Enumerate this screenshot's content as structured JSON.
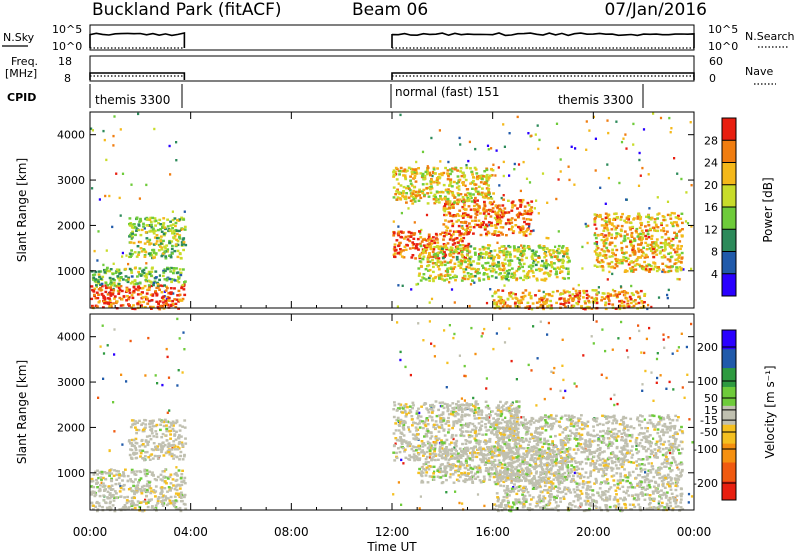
{
  "header": {
    "title": "Buckland Park (fitACF)",
    "beam": "Beam 06",
    "date": "07/Jan/2016"
  },
  "panels": {
    "nsky": {
      "label": "N.Sky",
      "ticks": [
        "10^5",
        "10^0"
      ],
      "right_label": "N.Search",
      "right_ticks": [
        "10^5",
        "10^0"
      ]
    },
    "freq": {
      "label_line1": "Freq.",
      "label_line2": "[MHz]",
      "ticks": [
        "18",
        "8"
      ],
      "right_label": "Nave",
      "right_ticks": [
        "60",
        "0"
      ]
    },
    "cpid": {
      "label": "CPID",
      "segments": [
        "themis 3300",
        "normal (fast) 151",
        "themis 3300"
      ]
    }
  },
  "power_panel": {
    "ylabel": "Slant Range [km]",
    "cbar_label": "Power [dB]",
    "cbar_ticks": [
      "28",
      "24",
      "20",
      "16",
      "12",
      "8",
      "4"
    ]
  },
  "velocity_panel": {
    "ylabel": "Slant Range [km]",
    "cbar_label": "Velocity [m s⁻¹]",
    "cbar_ticks": [
      "200",
      "100",
      "50",
      "15",
      "-15",
      "-50",
      "-100",
      "-200"
    ]
  },
  "x_axis": {
    "label": "Time UT",
    "ticks": [
      "00:00",
      "04:00",
      "08:00",
      "12:00",
      "16:00",
      "20:00",
      "00:00"
    ]
  },
  "chart_data": [
    {
      "type": "heatmap",
      "name": "power",
      "x_range_hours": [
        0,
        24
      ],
      "y_range_km": [
        180,
        4500
      ],
      "ylabel": "Slant Range [km]",
      "colorbar": {
        "label": "Power [dB]",
        "range": [
          0,
          32
        ],
        "ticks": [
          4,
          8,
          12,
          16,
          20,
          24,
          28
        ],
        "colors": [
          "#2a00ff",
          "#205aaa",
          "#2c8a5a",
          "#6ecb3a",
          "#c8dc2a",
          "#f4b81a",
          "#f07d10",
          "#e81f10"
        ]
      },
      "data_gaps_hours": [
        [
          3.75,
          12.0
        ]
      ],
      "regions": [
        {
          "t": [
            0.0,
            3.75
          ],
          "r": [
            180,
            700
          ],
          "power": 28
        },
        {
          "t": [
            0.0,
            3.75
          ],
          "r": [
            700,
            1100
          ],
          "power": 14
        },
        {
          "t": [
            1.5,
            3.75
          ],
          "r": [
            1300,
            2200
          ],
          "power": 16
        },
        {
          "t": [
            12.0,
            15.0
          ],
          "r": [
            1300,
            1900
          ],
          "power": 28
        },
        {
          "t": [
            14.0,
            17.5
          ],
          "r": [
            1800,
            2600
          ],
          "power": 26
        },
        {
          "t": [
            13.0,
            19.0
          ],
          "r": [
            800,
            1600
          ],
          "power": 18
        },
        {
          "t": [
            16.0,
            22.0
          ],
          "r": [
            180,
            600
          ],
          "power": 24
        },
        {
          "t": [
            20.0,
            23.5
          ],
          "r": [
            1000,
            2300
          ],
          "power": 22
        },
        {
          "t": [
            12.0,
            16.0
          ],
          "r": [
            2500,
            3300
          ],
          "power": 20
        }
      ]
    },
    {
      "type": "heatmap",
      "name": "velocity",
      "x_range_hours": [
        0,
        24
      ],
      "y_range_km": [
        180,
        4500
      ],
      "ylabel": "Slant Range [km]",
      "colorbar": {
        "label": "Velocity [m s⁻¹]",
        "range": [
          -250,
          250
        ],
        "ticks": [
          200,
          100,
          50,
          15,
          -15,
          -50,
          -100,
          -200
        ],
        "colors": [
          "#e81f10",
          "#f05a10",
          "#f59010",
          "#f5c020",
          "#c0c0b0",
          "#6ecb3a",
          "#2e9a40",
          "#205aaa",
          "#2a00ff"
        ]
      },
      "data_gaps_hours": [
        [
          3.75,
          12.0
        ]
      ],
      "regions": [
        {
          "t": [
            0.0,
            3.75
          ],
          "r": [
            180,
            1100
          ],
          "velocity": 0
        },
        {
          "t": [
            1.5,
            3.75
          ],
          "r": [
            1300,
            2200
          ],
          "velocity": -20
        },
        {
          "t": [
            12.0,
            17.0
          ],
          "r": [
            1300,
            2600
          ],
          "velocity": 0
        },
        {
          "t": [
            13.0,
            19.0
          ],
          "r": [
            800,
            1600
          ],
          "velocity": 0
        },
        {
          "t": [
            16.0,
            23.5
          ],
          "r": [
            180,
            2300
          ],
          "velocity": 0
        }
      ]
    }
  ]
}
